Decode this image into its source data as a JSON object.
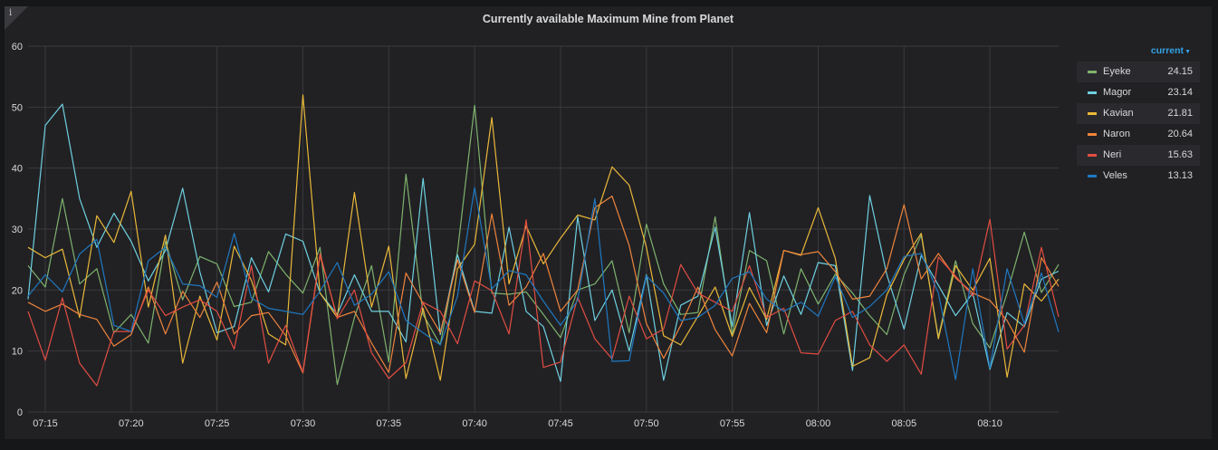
{
  "panel": {
    "title": "Currently available Maximum Mine from Planet",
    "info_icon": "i"
  },
  "legend": {
    "sort_label": "current",
    "sort_icon": "caret-down-icon"
  },
  "chart_data": {
    "type": "line",
    "title": "Currently available Maximum Mine from Planet",
    "xlabel": "",
    "ylabel": "",
    "ylim": [
      0,
      60
    ],
    "yticks": [
      "0",
      "10",
      "20",
      "30",
      "40",
      "50",
      "60"
    ],
    "xlim": [
      "07:14",
      "08:14"
    ],
    "xticks": [
      "07:15",
      "07:20",
      "07:25",
      "07:30",
      "07:35",
      "07:40",
      "07:45",
      "07:50",
      "07:55",
      "08:00",
      "08:05",
      "08:10"
    ],
    "grid": true,
    "legend_position": "right",
    "x": [
      "07:14",
      "07:15",
      "07:16",
      "07:17",
      "07:18",
      "07:19",
      "07:20",
      "07:21",
      "07:22",
      "07:23",
      "07:24",
      "07:25",
      "07:26",
      "07:27",
      "07:28",
      "07:29",
      "07:30",
      "07:31",
      "07:32",
      "07:33",
      "07:34",
      "07:35",
      "07:36",
      "07:37",
      "07:38",
      "07:39",
      "07:40",
      "07:41",
      "07:42",
      "07:43",
      "07:44",
      "07:45",
      "07:46",
      "07:47",
      "07:48",
      "07:49",
      "07:50",
      "07:51",
      "07:52",
      "07:53",
      "07:54",
      "07:55",
      "07:56",
      "07:57",
      "07:58",
      "07:59",
      "08:00",
      "08:01",
      "08:02",
      "08:03",
      "08:04",
      "08:05",
      "08:06",
      "08:07",
      "08:08",
      "08:09",
      "08:10",
      "08:11",
      "08:12",
      "08:13",
      "08:14"
    ],
    "series": [
      {
        "name": "Eyeke",
        "color": "#7eb26d",
        "current": "24.15",
        "values": [
          24,
          20.5,
          35,
          21,
          23.5,
          13,
          16,
          11.3,
          28,
          18.4,
          25.5,
          24.3,
          17.3,
          18,
          26.3,
          22.6,
          19.5,
          27,
          4.5,
          15.5,
          24,
          8.2,
          39,
          16,
          11,
          26.3,
          50.3,
          19.5,
          19.3,
          19.7,
          16,
          12.2,
          20,
          21,
          24.8,
          13,
          30.8,
          21,
          16,
          16.3,
          32,
          12.7,
          26.5,
          24.8,
          12.8,
          23.5,
          17.7,
          22.6,
          19.5,
          15.8,
          12.7,
          22.5,
          29,
          12.3,
          24.8,
          14.5,
          10.5,
          19.5,
          29.5,
          19.6,
          24.2
        ]
      },
      {
        "name": "Magor",
        "color": "#6ed0e0",
        "current": "23.14",
        "values": [
          18.5,
          47,
          50.5,
          35,
          27,
          32.6,
          28,
          21.5,
          26.5,
          36.7,
          23,
          13,
          14,
          25.3,
          19.7,
          29.2,
          28,
          19.5,
          16,
          22.5,
          16.5,
          16.5,
          11.5,
          38.3,
          12.7,
          25.8,
          16.5,
          16.2,
          30.3,
          16.5,
          14,
          5,
          32,
          15,
          20,
          10,
          22.5,
          5.2,
          17.5,
          19,
          30.3,
          14,
          32.7,
          14.2,
          22.3,
          16,
          24.5,
          24,
          6.8,
          35.5,
          22.5,
          13.6,
          25.7,
          20.8,
          15.8,
          19.5,
          7,
          16.3,
          14,
          21.8,
          23.1
        ]
      },
      {
        "name": "Kavian",
        "color": "#eab839",
        "current": "21.81",
        "values": [
          27,
          25.3,
          26.7,
          15.5,
          32.2,
          27.8,
          36.2,
          17.2,
          29,
          8,
          19,
          11.8,
          27.2,
          21.6,
          12.8,
          11,
          52,
          19.5,
          15.5,
          36,
          17.2,
          27.2,
          5.5,
          17,
          5.2,
          23.5,
          27.5,
          48.3,
          21,
          30.5,
          24.3,
          28.5,
          32.3,
          31.5,
          40.2,
          37.2,
          27,
          12.5,
          11,
          15.7,
          20.5,
          12.4,
          20.4,
          15.2,
          26.5,
          25.7,
          33.5,
          25.2,
          7.5,
          8.9,
          19.2,
          25,
          29.3,
          12,
          24,
          20,
          25.2,
          5.7,
          21,
          18.2,
          21.8
        ]
      },
      {
        "name": "Naron",
        "color": "#ef843c",
        "current": "20.64",
        "values": [
          18,
          16.5,
          17.7,
          16,
          15.2,
          10.8,
          12.7,
          20.5,
          12.8,
          19.8,
          15.5,
          21.3,
          12.8,
          15.8,
          16.3,
          12.5,
          6.4,
          25.7,
          15.5,
          16.5,
          11.3,
          6.5,
          22.8,
          17.8,
          13,
          25,
          16.3,
          32.5,
          17.5,
          20.5,
          26,
          16.5,
          20,
          33.5,
          35.4,
          27.3,
          14.5,
          8.8,
          14.2,
          20.5,
          13.5,
          9.2,
          17.8,
          13,
          26.5,
          25.8,
          26.3,
          23,
          18.5,
          19,
          23.5,
          34,
          21.8,
          26,
          22,
          19.5,
          18.3,
          15,
          9.8,
          25.3,
          20.6
        ]
      },
      {
        "name": "Neri",
        "color": "#e24d42",
        "current": "15.63",
        "values": [
          16.5,
          8.5,
          18.7,
          8,
          4.3,
          13.2,
          13.2,
          20,
          15.8,
          17.2,
          18.4,
          16.5,
          10.3,
          24,
          8,
          14.2,
          6.5,
          26,
          15.3,
          20,
          9.7,
          5.5,
          8.1,
          18,
          16.5,
          11.2,
          21.5,
          19.9,
          12.8,
          31.5,
          7.3,
          8.2,
          18.8,
          12,
          8.7,
          19,
          12,
          13.6,
          24.2,
          19.5,
          18,
          16.5,
          24,
          15.5,
          17,
          9.7,
          9.5,
          15,
          16.5,
          11,
          8.3,
          11,
          6.2,
          25.4,
          22.3,
          19,
          31.6,
          10.3,
          14.2,
          27,
          15.6
        ]
      },
      {
        "name": "Veles",
        "color": "#1f78c1",
        "current": "13.13",
        "values": [
          19,
          22.5,
          19.7,
          25.9,
          28.3,
          14.2,
          13.2,
          24.8,
          27,
          21,
          20.7,
          18.8,
          29.3,
          18.7,
          17,
          16.5,
          16,
          19.8,
          24.5,
          17.5,
          19.3,
          23,
          15,
          13,
          11,
          19,
          36.8,
          20.2,
          23.2,
          22.5,
          18.2,
          14.2,
          18.3,
          35,
          8.3,
          8.4,
          22.3,
          19.5,
          15,
          15.5,
          17.5,
          21.9,
          23,
          18.5,
          16.5,
          18,
          15.7,
          22.2,
          15.5,
          17.3,
          20,
          25.5,
          26,
          19.5,
          5.3,
          23.5,
          7.2,
          23.5,
          14.5,
          22.8,
          13.1
        ]
      }
    ]
  }
}
